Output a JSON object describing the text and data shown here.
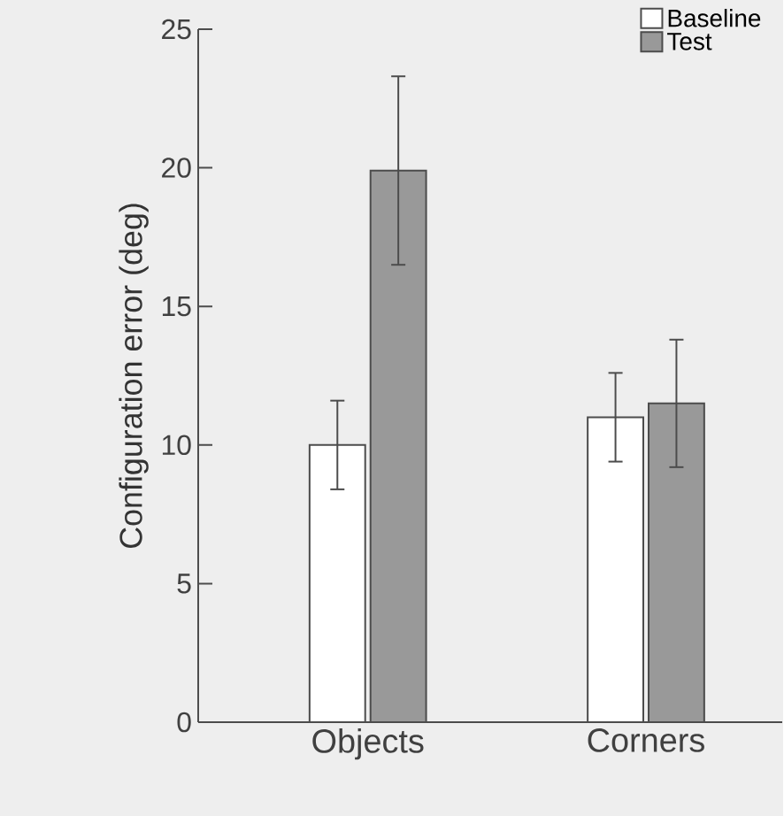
{
  "chart_data": {
    "type": "bar",
    "ylabel": "Configuration error (deg)",
    "categories": [
      "Objects",
      "Corners"
    ],
    "series": [
      {
        "name": "Baseline",
        "color": "#ffffff",
        "values": [
          10.0,
          11.0
        ],
        "errors": [
          1.6,
          1.6
        ]
      },
      {
        "name": "Test",
        "color": "#999999",
        "values": [
          19.9,
          11.5
        ],
        "errors": [
          3.4,
          2.3
        ]
      }
    ],
    "ylim": [
      0,
      25
    ],
    "yticks": [
      0,
      5,
      10,
      15,
      20,
      25
    ],
    "legend": "top right",
    "grid": false
  }
}
